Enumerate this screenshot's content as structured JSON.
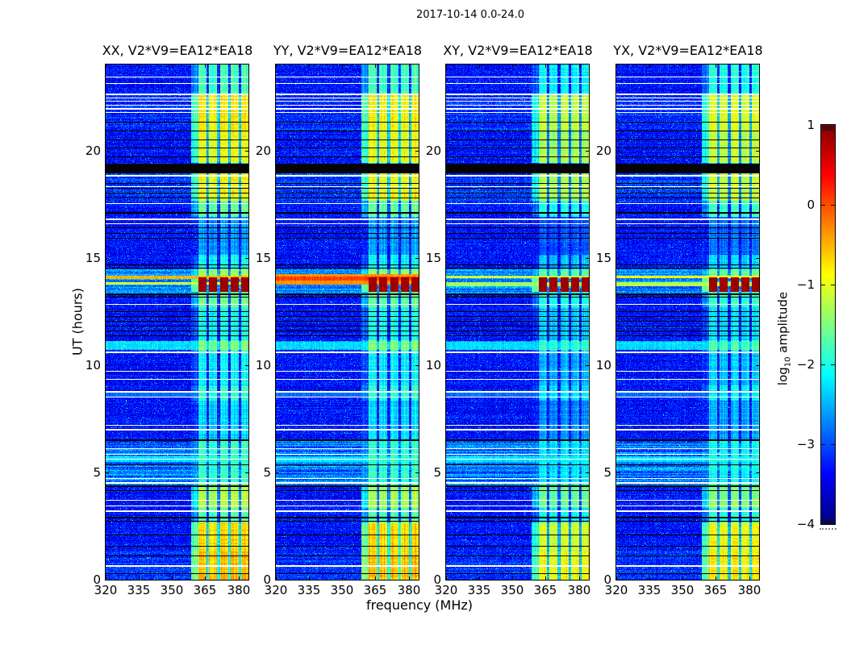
{
  "figure": {
    "suptitle": "2017-10-14 0.0-24.0",
    "xlabel": "frequency (MHz)",
    "ylabel": "UT (hours)",
    "bg_color": "#ffffff",
    "text_color": "#000000"
  },
  "chart_data": {
    "type": "heatmap",
    "title": "2017-10-14 0.0-24.0",
    "xlabel": "frequency (MHz)",
    "ylabel": "UT (hours)",
    "x_range_mhz": [
      320,
      384.5
    ],
    "x_ticks": [
      320,
      335,
      350,
      365,
      380
    ],
    "y_range_hours": [
      0,
      24
    ],
    "y_ticks": [
      0,
      5,
      10,
      15,
      20
    ],
    "colormap": "jet",
    "panels": [
      {
        "pol": "XX",
        "title": "XX, V2*V9=EA12*EA18",
        "band_offset": 0,
        "burst_hlines": [
          [
            14.02,
            14.15,
            -0.5
          ],
          [
            13.75,
            13.85,
            -1.1
          ]
        ]
      },
      {
        "pol": "YY",
        "title": "YY, V2*V9=EA12*EA18",
        "band_offset": 0,
        "burst_hlines": [
          [
            13.75,
            14.2,
            -0.35
          ],
          [
            13.95,
            14.12,
            0.05
          ]
        ]
      },
      {
        "pol": "XY",
        "title": "XY, V2*V9=EA12*EA18",
        "band_offset": -0.35,
        "burst_hlines": [
          [
            14.05,
            14.15,
            -1.15
          ],
          [
            13.7,
            13.85,
            -1.35
          ]
        ]
      },
      {
        "pol": "YX",
        "title": "YX, V2*V9=EA12*EA18",
        "band_offset": -0.2,
        "burst_hlines": [
          [
            14.05,
            14.15,
            -0.85
          ],
          [
            13.7,
            13.85,
            -1.2
          ]
        ]
      }
    ],
    "colorbar": {
      "label": "log10 amplitude",
      "label_parts": {
        "pre": "log",
        "sub": "10",
        "post": " amplitude"
      },
      "min": -4,
      "max": 1,
      "ticks": [
        1,
        0,
        -1,
        -2,
        -3,
        -4
      ]
    },
    "noise_floor_log10": -3.55,
    "rfi_band_mhz": [
      358.5,
      384.5
    ],
    "rfi_subbands_mhz": [
      [
        361.8,
        365.3
      ],
      [
        366.5,
        370.2
      ],
      [
        371.4,
        375.1
      ],
      [
        376.3,
        380.0
      ],
      [
        381.2,
        384.5
      ]
    ],
    "band_time_segments": [
      [
        0,
        1.3,
        -0.55
      ],
      [
        1.3,
        2.65,
        -0.7
      ],
      [
        2.65,
        3.35,
        -1.7
      ],
      [
        3.35,
        4.45,
        -1.25
      ],
      [
        4.45,
        6.55,
        -1.85
      ],
      [
        6.55,
        8.35,
        -2.3
      ],
      [
        8.35,
        9.05,
        -1.9
      ],
      [
        9.05,
        10.65,
        -2.15
      ],
      [
        10.65,
        11.15,
        -1.5
      ],
      [
        11.15,
        12.7,
        -2.0
      ],
      [
        12.7,
        13.4,
        -1.6
      ],
      [
        13.4,
        14.1,
        0.85
      ],
      [
        14.1,
        14.45,
        -1.35
      ],
      [
        14.45,
        15.15,
        -2.1
      ],
      [
        15.15,
        16.9,
        -2.6
      ],
      [
        16.9,
        17.65,
        -1.6
      ],
      [
        17.65,
        18.95,
        -0.9
      ],
      [
        18.95,
        19.4,
        -2.0
      ],
      [
        19.4,
        20.95,
        -0.95
      ],
      [
        20.95,
        22.65,
        -0.8
      ],
      [
        22.65,
        24.01,
        -1.75
      ]
    ],
    "row_segments": [
      [
        0.0,
        1.35,
        -3.4,
        0.35
      ],
      [
        4.4,
        6.55,
        -3.05,
        0.85
      ],
      [
        10.7,
        11.1,
        -2.7,
        0.4
      ],
      [
        13.35,
        14.45,
        -2.95,
        0.5
      ],
      [
        17.5,
        18.95,
        -3.35,
        0.4
      ],
      [
        20.95,
        22.6,
        -3.4,
        0.4
      ]
    ],
    "cyan_rows": [
      [
        10.75,
        11.05,
        -2.35
      ],
      [
        5.5,
        5.72,
        -2.3
      ],
      [
        8.55,
        8.72,
        -2.85
      ]
    ],
    "white_lines": [
      [
        23.4,
        1
      ],
      [
        23.1,
        1
      ],
      [
        22.62,
        2
      ],
      [
        22.45,
        1
      ],
      [
        22.28,
        1
      ],
      [
        22.1,
        1
      ],
      [
        21.92,
        2
      ],
      [
        21.78,
        1
      ],
      [
        18.82,
        2
      ],
      [
        18.3,
        1
      ],
      [
        17.52,
        1
      ],
      [
        16.78,
        2
      ],
      [
        16.6,
        1
      ],
      [
        12.82,
        1
      ],
      [
        10.6,
        2
      ],
      [
        9.72,
        1
      ],
      [
        9.35,
        1
      ],
      [
        8.75,
        2
      ],
      [
        8.5,
        1
      ],
      [
        7.2,
        1
      ],
      [
        7.0,
        2
      ],
      [
        6.12,
        1
      ],
      [
        5.85,
        1
      ],
      [
        5.6,
        1
      ],
      [
        4.72,
        1
      ],
      [
        4.5,
        2
      ],
      [
        3.7,
        1
      ],
      [
        3.45,
        1
      ],
      [
        3.2,
        2
      ],
      [
        0.65,
        2
      ]
    ],
    "black_lines": [
      [
        21.32,
        1
      ],
      [
        20.9,
        1
      ],
      [
        20.5,
        1
      ],
      [
        20.1,
        1
      ],
      [
        19.7,
        1
      ],
      [
        18.45,
        1
      ],
      [
        18.22,
        1
      ],
      [
        18.0,
        1
      ],
      [
        17.78,
        1
      ],
      [
        17.1,
        2
      ],
      [
        16.4,
        1
      ],
      [
        16.15,
        1
      ],
      [
        15.9,
        1
      ],
      [
        14.68,
        1
      ],
      [
        14.5,
        1
      ],
      [
        13.3,
        2
      ],
      [
        13.16,
        1
      ],
      [
        12.5,
        1
      ],
      [
        12.28,
        1
      ],
      [
        12.05,
        1
      ],
      [
        11.8,
        1
      ],
      [
        11.58,
        1
      ],
      [
        11.35,
        1
      ],
      [
        6.5,
        2
      ],
      [
        5.35,
        1
      ],
      [
        4.35,
        2
      ],
      [
        4.15,
        1
      ],
      [
        2.9,
        2
      ],
      [
        2.72,
        1
      ],
      [
        2.1,
        1
      ],
      [
        1.55,
        1
      ],
      [
        1.1,
        1
      ],
      [
        0.3,
        1
      ]
    ],
    "black_band": [
      18.95,
      19.38
    ],
    "burst": {
      "t_range": [
        13.4,
        14.1
      ],
      "peak_log10": 0.85
    }
  }
}
